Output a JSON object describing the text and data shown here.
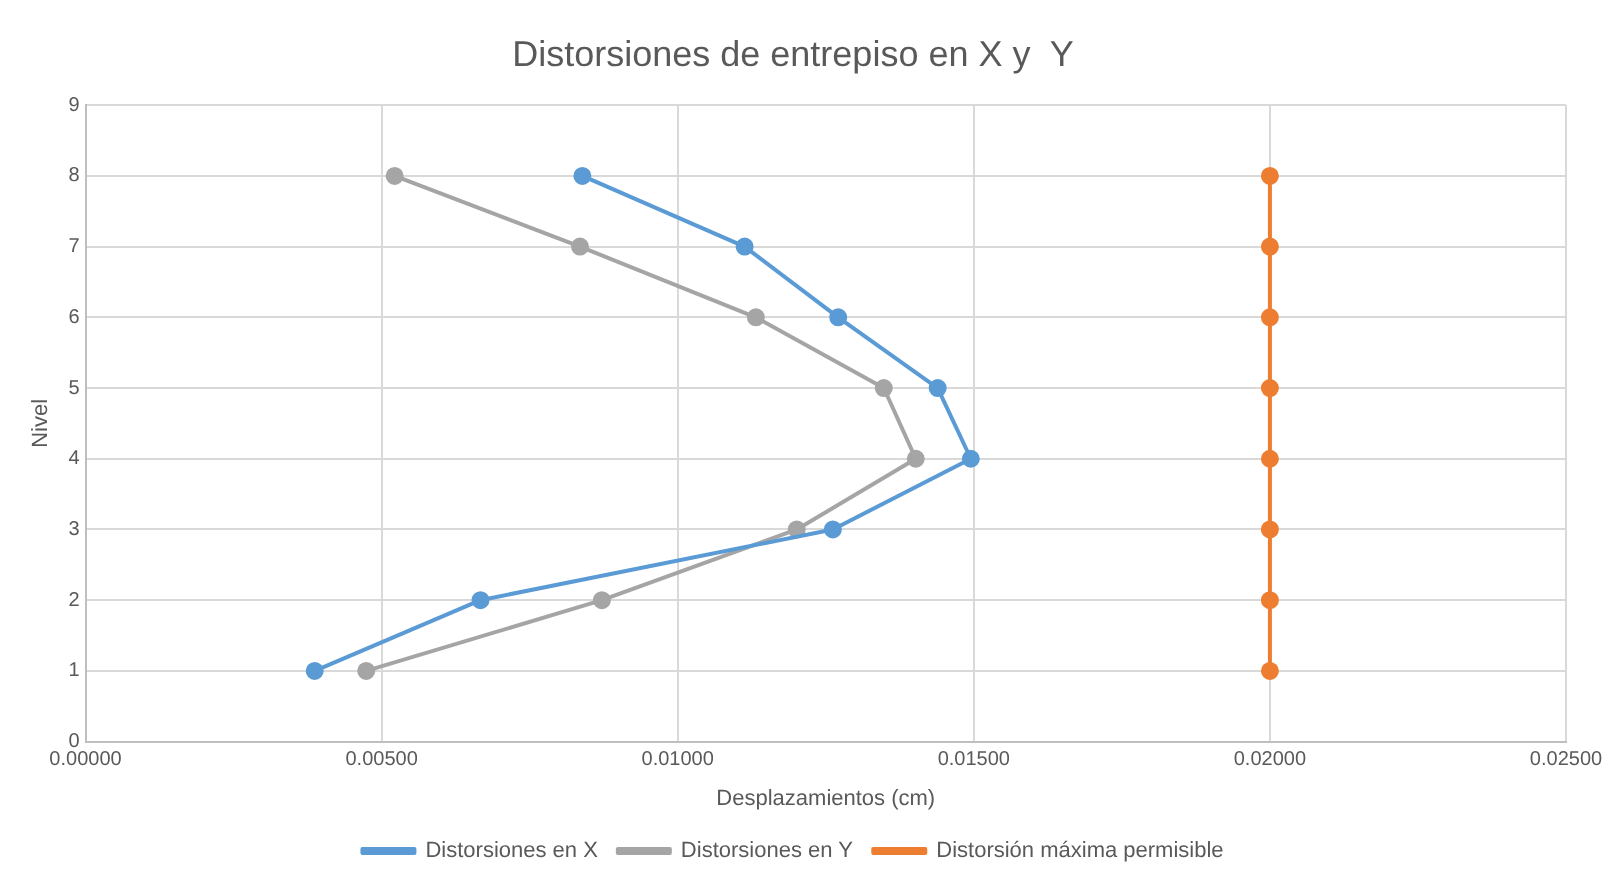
{
  "chart_data": {
    "type": "line",
    "title": "Distorsiones de entrepiso en X y  Y",
    "xlabel": "Desplazamientos (cm)",
    "ylabel": "Nivel",
    "xlim": [
      0,
      0.025
    ],
    "xticks": [
      {
        "value": 0,
        "label": "0.00000"
      },
      {
        "value": 0.005,
        "label": "0.00500"
      },
      {
        "value": 0.01,
        "label": "0.01000"
      },
      {
        "value": 0.015,
        "label": "0.01500"
      },
      {
        "value": 0.02,
        "label": "0.02000"
      },
      {
        "value": 0.025,
        "label": "0.02500"
      }
    ],
    "ylim": [
      0,
      9
    ],
    "yticks": [
      0,
      1,
      2,
      3,
      4,
      5,
      6,
      7,
      8,
      9
    ],
    "grid": true,
    "legend": "bottom",
    "marker": "circle",
    "line_style": "solid",
    "series": [
      {
        "name": "Distorsiones en X",
        "color": "#5b9bd5",
        "x": [
          0.00387,
          0.00667,
          0.01262,
          0.01495,
          0.01439,
          0.01271,
          0.01113,
          0.00839
        ],
        "values": [
          1,
          2,
          3,
          4,
          5,
          6,
          7,
          8
        ]
      },
      {
        "name": "Distorsiones en Y",
        "color": "#a5a5a5",
        "x": [
          0.00474,
          0.00872,
          0.01201,
          0.01402,
          0.01348,
          0.01132,
          0.00835,
          0.00522
        ],
        "values": [
          1,
          2,
          3,
          4,
          5,
          6,
          7,
          8
        ]
      },
      {
        "name": "Distorsión máxima permisible",
        "color": "#ed7d31",
        "x": [
          0.02,
          0.02,
          0.02,
          0.02,
          0.02,
          0.02,
          0.02,
          0.02
        ],
        "values": [
          1,
          2,
          3,
          4,
          5,
          6,
          7,
          8
        ]
      }
    ]
  }
}
